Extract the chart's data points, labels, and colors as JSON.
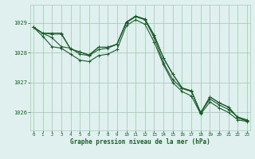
{
  "bg_color": "#dff0ee",
  "grid_color": "#aaccbb",
  "line_color": "#1a5c2a",
  "marker_color": "#1a5c2a",
  "xlabel": "Graphe pression niveau de la mer (hPa)",
  "xlabel_color": "#1a5c2a",
  "tick_color": "#1a5c2a",
  "yticks": [
    1026,
    1027,
    1028,
    1029
  ],
  "xticks": [
    0,
    1,
    2,
    3,
    4,
    5,
    6,
    7,
    8,
    9,
    10,
    11,
    12,
    13,
    14,
    15,
    16,
    17,
    18,
    19,
    20,
    21,
    22,
    23
  ],
  "xlim": [
    -0.3,
    23.3
  ],
  "ylim": [
    1025.4,
    1029.6
  ],
  "series": [
    [
      1028.85,
      1028.65,
      1028.62,
      1028.62,
      1028.12,
      1028.02,
      1027.92,
      1028.18,
      1028.18,
      1028.28,
      1029.02,
      1029.22,
      1029.12,
      1028.58,
      1027.82,
      1027.28,
      1026.82,
      1026.72,
      1025.98,
      1026.52,
      1026.32,
      1026.18,
      1025.82,
      1025.72
    ],
    [
      1028.85,
      1028.65,
      1028.5,
      1028.2,
      1028.15,
      1027.95,
      1027.9,
      1028.1,
      1028.15,
      1028.28,
      1029.0,
      1029.2,
      1029.1,
      1028.5,
      1027.65,
      1027.1,
      1026.8,
      1026.7,
      1026.0,
      1026.45,
      1026.25,
      1026.1,
      1025.85,
      1025.75
    ],
    [
      1028.85,
      1028.55,
      1028.2,
      1028.15,
      1027.95,
      1027.75,
      1027.7,
      1027.9,
      1027.95,
      1028.1,
      1028.9,
      1029.1,
      1028.95,
      1028.35,
      1027.6,
      1027.0,
      1026.7,
      1026.55,
      1025.95,
      1026.35,
      1026.15,
      1026.0,
      1025.75,
      1025.7
    ],
    [
      1028.85,
      1028.65,
      1028.65,
      1028.65,
      1028.12,
      1028.02,
      1027.92,
      1028.18,
      1028.18,
      1028.28,
      1029.02,
      1029.22,
      1029.12,
      1028.58,
      1027.82,
      1027.28,
      1026.82,
      1026.72,
      1025.98,
      1026.52,
      1026.32,
      1026.18,
      1025.82,
      1025.72
    ]
  ]
}
